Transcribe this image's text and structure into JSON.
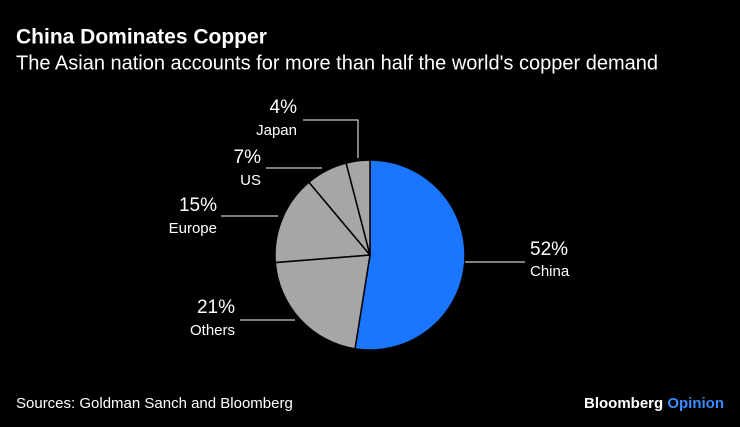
{
  "chart_data": {
    "type": "pie",
    "title": "China Dominates Copper",
    "subtitle": "The Asian nation accounts for more than half the world's copper demand",
    "categories": [
      "China",
      "Others",
      "Europe",
      "US",
      "Japan"
    ],
    "values": [
      52,
      21,
      15,
      7,
      4
    ],
    "value_labels": [
      "52%",
      "21%",
      "15%",
      "7%",
      "4%"
    ],
    "colors": [
      "#1a75ff",
      "#a6a6a6",
      "#a6a6a6",
      "#a6a6a6",
      "#a6a6a6"
    ],
    "source": "Sources: Goldman Sanch and Bloomberg",
    "brand": {
      "name": "Bloomberg",
      "suffix": "Opinion"
    }
  }
}
